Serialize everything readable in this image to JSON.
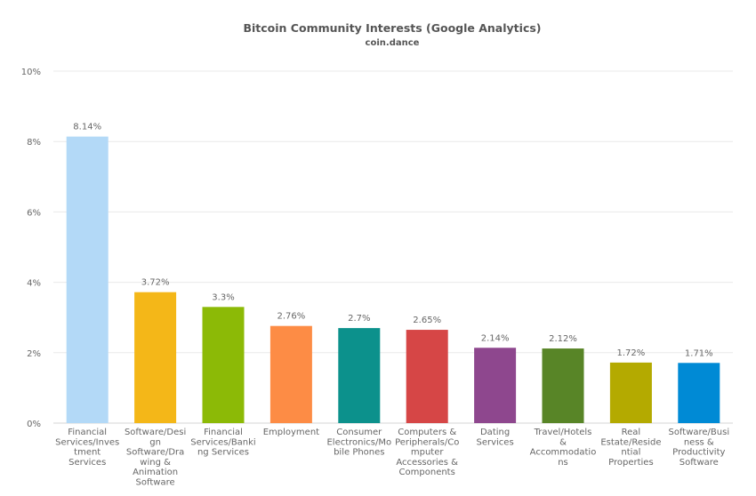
{
  "chart_data": {
    "type": "bar",
    "title": "Bitcoin Community Interests (Google Analytics)",
    "subtitle": "coin.dance",
    "xlabel": "",
    "ylabel": "",
    "ylim": [
      0,
      10
    ],
    "yticks": [
      "0%",
      "2%",
      "4%",
      "6%",
      "8%",
      "10%"
    ],
    "grid": true,
    "categories": [
      [
        "Financial",
        "Services/Inves",
        "tment",
        "Services"
      ],
      [
        "Software/Desi",
        "gn",
        "Software/Dra",
        "wing &",
        "Animation",
        "Software"
      ],
      [
        "Financial",
        "Services/Banki",
        "ng Services"
      ],
      [
        "Employment"
      ],
      [
        "Consumer",
        "Electronics/Mo",
        "bile Phones"
      ],
      [
        "Computers &",
        "Peripherals/Co",
        "mputer",
        "Accessories &",
        "Components"
      ],
      [
        "Dating",
        "Services"
      ],
      [
        "Travel/Hotels",
        "&",
        "Accommodatio",
        "ns"
      ],
      [
        "Real",
        "Estate/Reside",
        "ntial",
        "Properties"
      ],
      [
        "Software/Busi",
        "ness &",
        "Productivity",
        "Software"
      ]
    ],
    "values": [
      8.14,
      3.72,
      3.3,
      2.76,
      2.7,
      2.65,
      2.14,
      2.12,
      1.72,
      1.71
    ],
    "data_labels": [
      "8.14%",
      "3.72%",
      "3.3%",
      "2.76%",
      "2.7%",
      "2.65%",
      "2.14%",
      "2.12%",
      "1.72%",
      "1.71%"
    ],
    "colors": [
      "#b3d9f7",
      "#f4b718",
      "#8cba06",
      "#fd8c45",
      "#0c918c",
      "#d64646",
      "#8e478e",
      "#588527",
      "#b4aa00",
      "#008ad5"
    ]
  }
}
